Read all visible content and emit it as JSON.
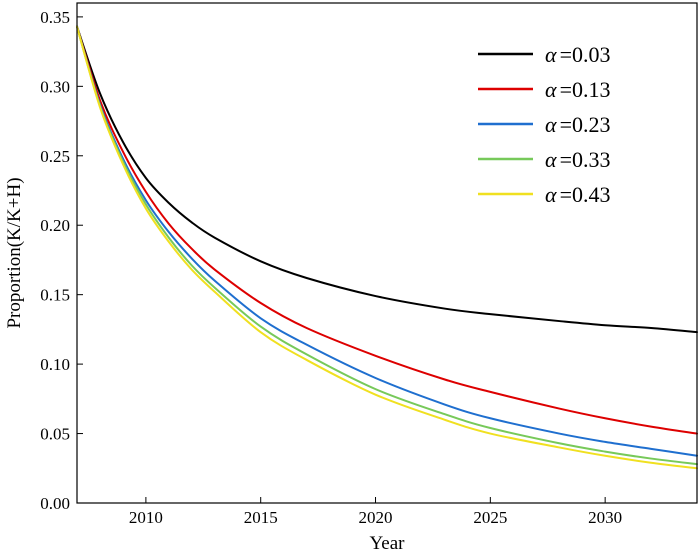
{
  "chart_data": {
    "type": "line",
    "title": "",
    "xlabel": "Year",
    "ylabel": "Proportion(K/K+H)",
    "xlim": [
      2007,
      2034
    ],
    "ylim": [
      0,
      0.36
    ],
    "x_ticks": [
      2010,
      2015,
      2020,
      2025,
      2030
    ],
    "y_ticks": [
      0.0,
      0.05,
      0.1,
      0.15,
      0.2,
      0.25,
      0.3,
      0.35
    ],
    "x_tick_labels": [
      "2010",
      "2015",
      "2020",
      "2025",
      "2030"
    ],
    "y_tick_labels": [
      "0.00",
      "0.05",
      "0.10",
      "0.15",
      "0.20",
      "0.25",
      "0.30",
      "0.35"
    ],
    "grid": false,
    "legend_position": "top-right",
    "x": [
      2007,
      2008,
      2009,
      2010,
      2011,
      2012,
      2013,
      2015,
      2017,
      2020,
      2023,
      2025,
      2028,
      2030,
      2032,
      2034
    ],
    "series": [
      {
        "name": "α =0.03",
        "symbol": "α",
        "value_label": "=0.03",
        "color": "#000000",
        "values": [
          0.343,
          0.295,
          0.26,
          0.234,
          0.216,
          0.202,
          0.191,
          0.174,
          0.162,
          0.149,
          0.14,
          0.136,
          0.131,
          0.128,
          0.126,
          0.123
        ]
      },
      {
        "name": "α =0.13",
        "symbol": "α",
        "value_label": "=0.13",
        "color": "#dd0000",
        "values": [
          0.343,
          0.29,
          0.253,
          0.224,
          0.201,
          0.183,
          0.168,
          0.144,
          0.126,
          0.106,
          0.089,
          0.08,
          0.068,
          0.061,
          0.055,
          0.05
        ]
      },
      {
        "name": "α =0.23",
        "symbol": "α",
        "value_label": "=0.23",
        "color": "#1f6fcf",
        "values": [
          0.343,
          0.287,
          0.248,
          0.218,
          0.195,
          0.176,
          0.16,
          0.133,
          0.114,
          0.09,
          0.071,
          0.061,
          0.05,
          0.044,
          0.039,
          0.034
        ]
      },
      {
        "name": "α =0.33",
        "symbol": "α",
        "value_label": "=0.33",
        "color": "#77c95a",
        "values": [
          0.343,
          0.286,
          0.246,
          0.215,
          0.191,
          0.171,
          0.155,
          0.127,
          0.107,
          0.082,
          0.064,
          0.054,
          0.043,
          0.037,
          0.032,
          0.028
        ]
      },
      {
        "name": "α =0.43",
        "symbol": "α",
        "value_label": "=0.43",
        "color": "#f0e020",
        "values": [
          0.343,
          0.285,
          0.244,
          0.212,
          0.188,
          0.168,
          0.152,
          0.123,
          0.103,
          0.078,
          0.06,
          0.05,
          0.04,
          0.034,
          0.029,
          0.025
        ]
      }
    ]
  }
}
